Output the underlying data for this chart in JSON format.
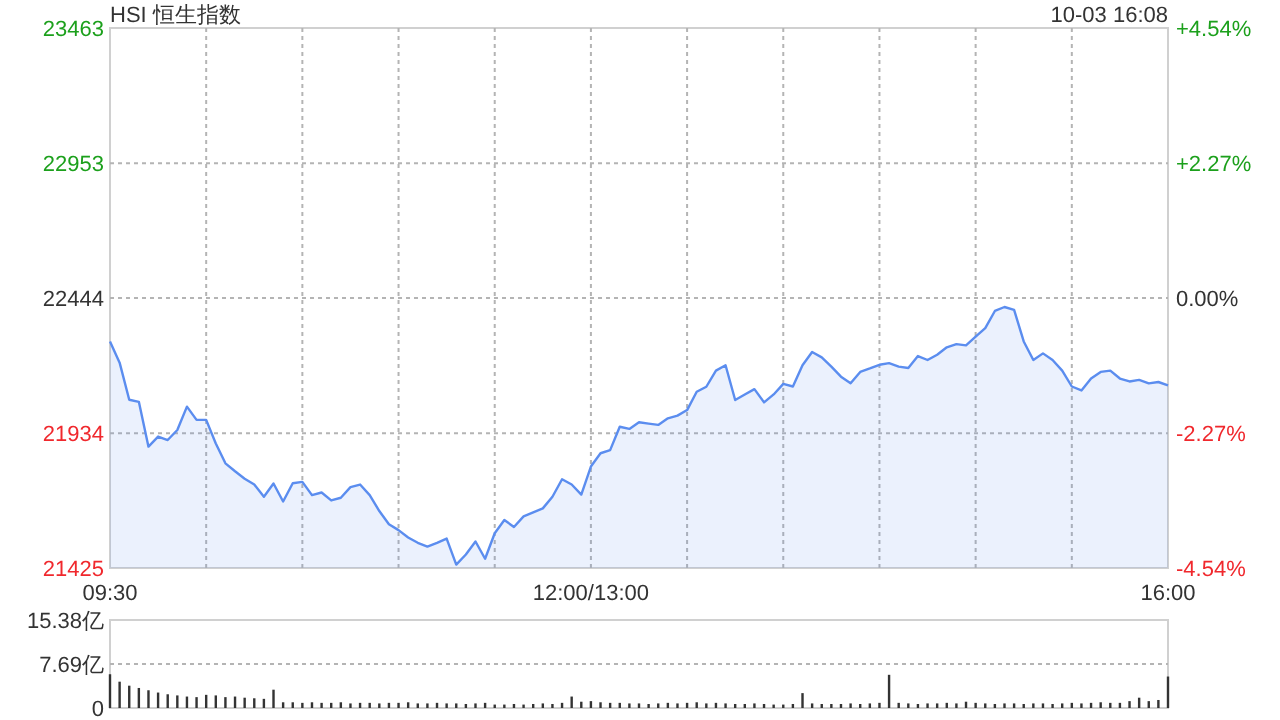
{
  "chart_data": [
    {
      "type": "area",
      "title": "HSI 恒生指数",
      "annotations": [
        "10-03 16:08"
      ],
      "categories": [
        "09:30",
        null,
        null,
        null,
        null,
        null,
        null,
        null,
        null,
        null,
        null,
        null,
        null,
        null,
        null,
        null,
        null,
        null,
        null,
        null,
        null,
        null,
        null,
        null,
        null,
        null,
        null,
        null,
        null,
        null,
        null,
        null,
        null,
        null,
        null,
        null,
        null,
        null,
        null,
        null,
        null,
        null,
        null,
        null,
        null,
        null,
        null,
        null,
        null,
        null,
        "12:00/13:00",
        null,
        null,
        null,
        null,
        null,
        null,
        null,
        null,
        null,
        null,
        null,
        null,
        null,
        null,
        null,
        null,
        null,
        null,
        null,
        null,
        null,
        null,
        null,
        null,
        null,
        null,
        null,
        null,
        null,
        null,
        null,
        null,
        null,
        null,
        null,
        null,
        null,
        null,
        null,
        null,
        null,
        null,
        null,
        null,
        null,
        null,
        null,
        null,
        null,
        null,
        null,
        null,
        null,
        null,
        null,
        null,
        null,
        null,
        null,
        "16:00"
      ],
      "series": [
        {
          "color": "#5b8def",
          "values": [
            22280,
            22200,
            22060,
            22052,
            21883,
            21921,
            21908,
            21946,
            22034,
            21984,
            21984,
            21895,
            21820,
            21790,
            21762,
            21740,
            21694,
            21744,
            21676,
            21745,
            21750,
            21700,
            21710,
            21680,
            21690,
            21730,
            21740,
            21700,
            21640,
            21590,
            21568,
            21540,
            21520,
            21506,
            21520,
            21536,
            21438,
            21476,
            21525,
            21460,
            21556,
            21606,
            21580,
            21620,
            21635,
            21650,
            21694,
            21760,
            21740,
            21702,
            21808,
            21858,
            21870,
            21958,
            21950,
            21975,
            21970,
            21965,
            21990,
            22000,
            22021,
            22090,
            22109,
            22170,
            22190,
            22059,
            22080,
            22100,
            22050,
            22080,
            22120,
            22110,
            22190,
            22240,
            22220,
            22185,
            22147,
            22122,
            22165,
            22178,
            22192,
            22198,
            22185,
            22180,
            22225,
            22210,
            22230,
            22258,
            22270,
            22265,
            22298,
            22330,
            22395,
            22410,
            22399,
            22280,
            22210,
            22235,
            22210,
            22170,
            22110,
            22095,
            22140,
            22165,
            22170,
            22140,
            22129,
            22135,
            22122,
            22127,
            22114
          ]
        }
      ],
      "ylim": [
        21425,
        23463
      ],
      "yticks": [
        21425,
        21934,
        22444,
        22953,
        23463
      ],
      "y2lim": [
        -4.54,
        4.54
      ],
      "y2ticks": [
        {
          "value": -4.54,
          "label": "-4.54%"
        },
        {
          "value": -2.27,
          "label": "-2.27%"
        },
        {
          "value": 0,
          "label": "0.00%"
        },
        {
          "value": 2.27,
          "label": "+2.27%"
        },
        {
          "value": 4.54,
          "label": "+4.54%"
        }
      ],
      "grid": true,
      "line_style": "solid"
    },
    {
      "type": "bar",
      "tick_labels": "y",
      "categories": [
        null,
        null,
        null,
        null,
        null,
        null,
        null,
        null,
        null,
        null,
        null,
        null,
        null,
        null,
        null,
        null,
        null,
        null,
        null,
        null,
        null,
        null,
        null,
        null,
        null,
        null,
        null,
        null,
        null,
        null,
        null,
        null,
        null,
        null,
        null,
        null,
        null,
        null,
        null,
        null,
        null,
        null,
        null,
        null,
        null,
        null,
        null,
        null,
        null,
        null,
        null,
        null,
        null,
        null,
        null,
        null,
        null,
        null,
        null,
        null,
        null,
        null,
        null,
        null,
        null,
        null,
        null,
        null,
        null,
        null,
        null,
        null,
        null,
        null,
        null,
        null,
        null,
        null,
        null,
        null,
        null,
        null,
        null,
        null,
        null,
        null,
        null,
        null,
        null,
        null,
        null,
        null,
        null,
        null,
        null,
        null,
        null,
        null,
        null,
        null,
        null,
        null,
        null,
        null,
        null,
        null,
        null,
        null,
        null,
        null,
        null
      ],
      "series": [
        {
          "color": "#333333",
          "values": [
            5.9,
            4.6,
            3.9,
            3.5,
            3.1,
            2.7,
            2.4,
            2.2,
            2.0,
            1.9,
            2.3,
            2.2,
            1.9,
            2.0,
            1.8,
            1.7,
            1.6,
            3.2,
            1.0,
            1.0,
            0.9,
            1.0,
            0.9,
            0.9,
            1.0,
            0.8,
            0.9,
            0.9,
            0.8,
            0.9,
            0.9,
            1.0,
            0.8,
            0.8,
            0.9,
            0.8,
            0.8,
            0.7,
            0.8,
            0.9,
            0.6,
            0.6,
            0.7,
            0.6,
            0.7,
            0.8,
            0.7,
            0.9,
            2.0,
            1.1,
            1.2,
            1.0,
            0.9,
            0.9,
            0.8,
            0.8,
            0.7,
            0.8,
            0.9,
            0.8,
            0.9,
            1.0,
            0.8,
            0.9,
            0.8,
            0.7,
            0.7,
            0.8,
            0.7,
            0.6,
            0.6,
            0.7,
            2.6,
            0.8,
            0.7,
            0.7,
            0.7,
            0.8,
            0.7,
            0.8,
            0.9,
            5.8,
            0.9,
            0.8,
            0.7,
            0.8,
            0.8,
            0.9,
            0.8,
            1.1,
            0.9,
            0.8,
            0.7,
            0.8,
            0.8,
            0.7,
            0.8,
            0.8,
            0.7,
            0.8,
            0.9,
            0.8,
            0.9,
            1.0,
            0.9,
            0.9,
            1.2,
            1.8,
            1.2,
            1.4,
            5.5
          ]
        }
      ],
      "ylim": [
        0,
        15.38
      ],
      "yticks": [
        0,
        {
          "value": 7.69,
          "label": "7.69亿"
        },
        {
          "value": 15.38,
          "label": "15.38亿"
        }
      ],
      "grid": "y"
    }
  ]
}
